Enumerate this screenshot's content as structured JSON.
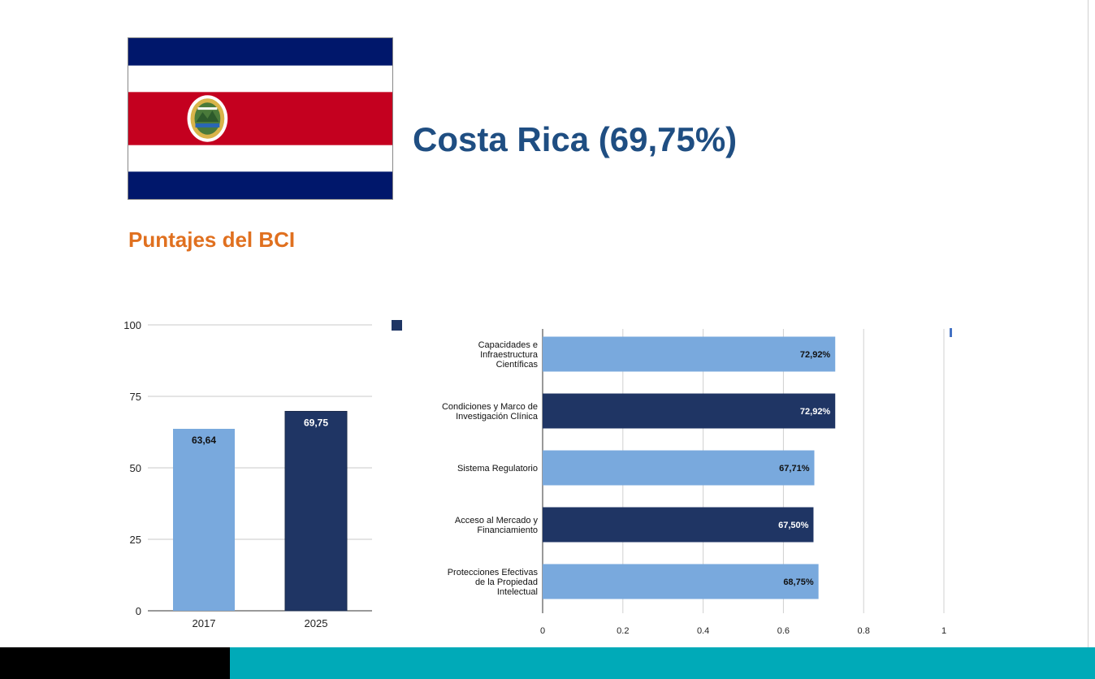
{
  "header": {
    "title": "Costa Rica (69,75%)",
    "subtitle": "Puntajes del BCI"
  },
  "flag": {
    "icon": "costa-rica-flag-icon",
    "colors": {
      "blue": "#00176b",
      "white": "#ffffff",
      "red": "#c4001f"
    }
  },
  "colors": {
    "light_bar": "#79a9dd",
    "dark_bar": "#1f3564",
    "footer_black": "#000000",
    "footer_teal": "#00aab8",
    "title": "#1f4e82",
    "subtitle": "#e0701f"
  },
  "chart_data": [
    {
      "type": "bar",
      "categories": [
        "2017",
        "2025"
      ],
      "values": [
        63.64,
        69.75
      ],
      "data_labels": [
        "63,64",
        "69,75"
      ],
      "title": "",
      "xlabel": "",
      "ylabel": "",
      "ylim": [
        0,
        100
      ],
      "yticks": [
        0,
        25,
        50,
        75,
        100
      ],
      "ytick_labels": [
        "0",
        "25",
        "50",
        "75",
        "100"
      ],
      "grid": true,
      "legend": "none"
    },
    {
      "type": "bar",
      "orientation": "horizontal",
      "categories": [
        "Capacidades e Infraestructura Científicas",
        "Condiciones y Marco de Investigación Clínica",
        "Sistema Regulatorio",
        "Acceso al Mercado y Financiamiento",
        "Protecciones Efectivas de la Propiedad Intelectual"
      ],
      "category_lines": [
        [
          "Capacidades e",
          "Infraestructura",
          "Científicas"
        ],
        [
          "Condiciones y Marco de",
          "Investigación Clínica"
        ],
        [
          "Sistema Regulatorio"
        ],
        [
          "Acceso al Mercado y",
          "Financiamiento"
        ],
        [
          "Protecciones Efectivas",
          "de la Propiedad",
          "Intelectual"
        ]
      ],
      "values": [
        0.7292,
        0.7292,
        0.6771,
        0.675,
        0.6875
      ],
      "data_labels": [
        "72,92%",
        "72,92%",
        "67,71%",
        "67,50%",
        "68,75%"
      ],
      "title": "",
      "xlabel": "",
      "ylabel": "",
      "xlim": [
        0,
        1
      ],
      "xticks": [
        0,
        0.2,
        0.4,
        0.6,
        0.8,
        1
      ],
      "xtick_labels": [
        "0",
        "0.2",
        "0.4",
        "0.6",
        "0.8",
        "1"
      ],
      "grid": true,
      "legend": "top-left"
    }
  ]
}
